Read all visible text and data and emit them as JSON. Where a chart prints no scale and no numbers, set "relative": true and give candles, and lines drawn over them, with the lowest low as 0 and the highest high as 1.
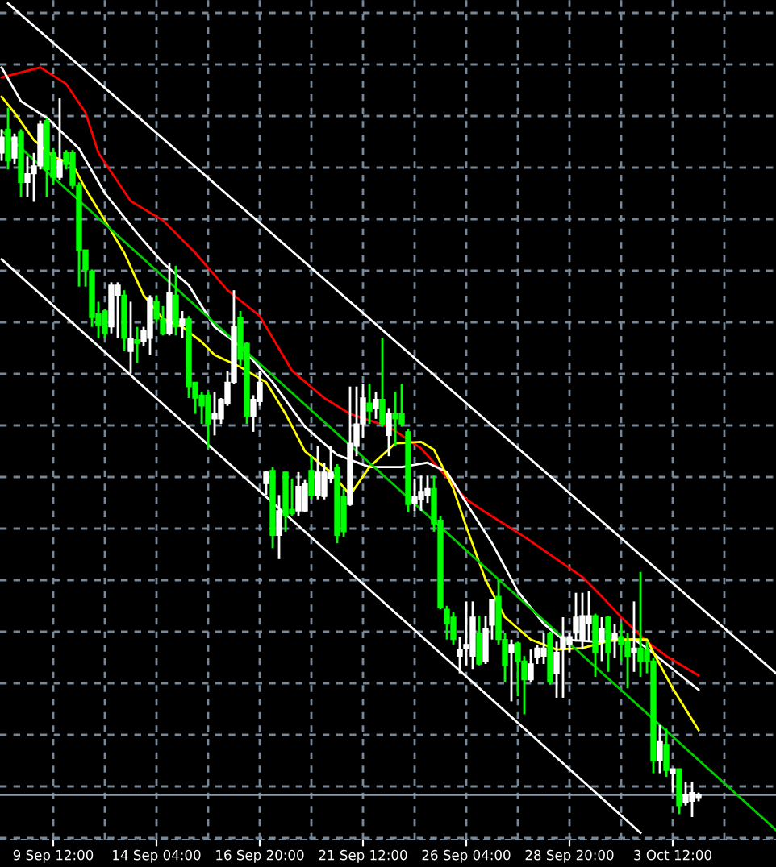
{
  "chart_data": {
    "type": "candlestick",
    "relative": true,
    "grid": true,
    "legend": false,
    "tick_labels": "x",
    "categories": [
      null,
      null,
      null,
      null,
      null,
      null,
      null,
      null,
      "9 Sep 12:00",
      null,
      null,
      null,
      null,
      null,
      null,
      null,
      null,
      null,
      null,
      null,
      null,
      null,
      null,
      null,
      "14 Sep 04:00",
      null,
      null,
      null,
      null,
      null,
      null,
      null,
      null,
      null,
      null,
      null,
      null,
      null,
      null,
      null,
      "16 Sep 20:00",
      null,
      null,
      null,
      null,
      null,
      null,
      null,
      null,
      null,
      null,
      null,
      null,
      null,
      null,
      null,
      "21 Sep 12:00",
      null,
      null,
      null,
      null,
      null,
      null,
      null,
      null,
      null,
      null,
      null,
      null,
      null,
      null,
      null,
      "26 Sep 04:00",
      null,
      null,
      null,
      null,
      null,
      null,
      null,
      null,
      null,
      null,
      null,
      null,
      null,
      null,
      null,
      "28 Sep 20:00",
      null,
      null,
      null,
      null,
      null,
      null,
      null,
      null,
      null,
      null,
      null,
      null,
      null,
      null,
      null,
      "3 Oct 12:00",
      null,
      null,
      null,
      null,
      null,
      null,
      null,
      null,
      null,
      null,
      null,
      null,
      null,
      null,
      null,
      null
    ],
    "ohlc": [
      [
        0.924,
        0.957,
        0.913,
        0.946
      ],
      [
        0.957,
        0.987,
        0.901,
        0.913
      ],
      [
        0.917,
        0.951,
        0.908,
        0.946
      ],
      [
        0.953,
        0.957,
        0.863,
        0.883
      ],
      [
        0.883,
        0.919,
        0.863,
        0.895
      ],
      [
        0.895,
        0.924,
        0.856,
        0.906
      ],
      [
        0.906,
        0.969,
        0.901,
        0.964
      ],
      [
        0.969,
        0.973,
        0.863,
        0.901
      ],
      [
        0.924,
        0.93,
        0.879,
        0.89
      ],
      [
        0.89,
        1.0,
        0.886,
        0.913
      ],
      [
        0.924,
        0.928,
        0.901,
        0.908
      ],
      [
        0.924,
        0.928,
        0.874,
        0.879
      ],
      [
        0.879,
        0.883,
        0.738,
        0.789
      ],
      [
        0.789,
        0.789,
        0.738,
        0.762
      ],
      [
        0.76,
        0.762,
        0.682,
        0.695
      ],
      [
        0.7,
        0.717,
        0.666,
        0.684
      ],
      [
        0.704,
        0.706,
        0.666,
        0.673
      ],
      [
        0.682,
        0.744,
        0.673,
        0.74
      ],
      [
        0.726,
        0.744,
        0.666,
        0.74
      ],
      [
        0.726,
        0.733,
        0.648,
        0.666
      ],
      [
        0.648,
        0.717,
        0.617,
        0.666
      ],
      [
        0.664,
        0.682,
        0.632,
        0.659
      ],
      [
        0.661,
        0.682,
        0.655,
        0.677
      ],
      [
        0.666,
        0.726,
        0.643,
        0.722
      ],
      [
        0.717,
        0.726,
        0.688,
        0.693
      ],
      [
        0.693,
        0.711,
        0.67,
        0.673
      ],
      [
        0.673,
        0.771,
        0.67,
        0.729
      ],
      [
        0.726,
        0.767,
        0.67,
        0.682
      ],
      [
        0.684,
        0.704,
        0.666,
        0.693
      ],
      [
        0.693,
        0.697,
        0.583,
        0.599
      ],
      [
        0.605,
        0.605,
        0.561,
        0.583
      ],
      [
        0.587,
        0.592,
        0.547,
        0.572
      ],
      [
        0.587,
        0.592,
        0.513,
        0.547
      ],
      [
        0.554,
        0.592,
        0.531,
        0.561
      ],
      [
        0.554,
        0.583,
        0.547,
        0.581
      ],
      [
        0.576,
        0.621,
        0.572,
        0.605
      ],
      [
        0.605,
        0.733,
        0.603,
        0.682
      ],
      [
        0.695,
        0.704,
        0.628,
        0.637
      ],
      [
        0.659,
        0.661,
        0.547,
        0.558
      ],
      [
        0.558,
        0.587,
        0.536,
        0.581
      ],
      [
        0.578,
        0.621,
        0.572,
        0.605
      ],
      [
        0.464,
        0.482,
        0.448,
        0.48
      ],
      [
        0.482,
        0.487,
        0.374,
        0.392
      ],
      [
        0.392,
        0.448,
        0.359,
        0.426
      ],
      [
        0.48,
        0.48,
        0.397,
        0.419
      ],
      [
        0.428,
        0.471,
        0.419,
        0.422
      ],
      [
        0.426,
        0.48,
        0.419,
        0.46
      ],
      [
        0.426,
        0.469,
        0.424,
        0.464
      ],
      [
        0.482,
        0.502,
        0.442,
        0.448
      ],
      [
        0.448,
        0.516,
        0.442,
        0.48
      ],
      [
        0.446,
        0.493,
        0.442,
        0.48
      ],
      [
        0.471,
        0.516,
        0.464,
        0.48
      ],
      [
        0.487,
        0.491,
        0.381,
        0.392
      ],
      [
        0.446,
        0.457,
        0.39,
        0.397
      ],
      [
        0.435,
        0.599,
        0.433,
        0.52
      ],
      [
        0.516,
        0.599,
        0.502,
        0.547
      ],
      [
        0.547,
        0.603,
        0.527,
        0.583
      ],
      [
        0.576,
        0.603,
        0.547,
        0.565
      ],
      [
        0.569,
        0.592,
        0.554,
        0.581
      ],
      [
        0.581,
        0.666,
        0.543,
        0.547
      ],
      [
        0.531,
        0.569,
        0.502,
        0.561
      ],
      [
        0.561,
        0.592,
        0.516,
        0.554
      ],
      [
        0.561,
        0.603,
        0.543,
        0.547
      ],
      [
        0.536,
        0.54,
        0.424,
        0.435
      ],
      [
        0.437,
        0.471,
        0.426,
        0.446
      ],
      [
        0.442,
        0.475,
        0.426,
        0.453
      ],
      [
        0.448,
        0.475,
        0.437,
        0.457
      ],
      [
        0.457,
        0.475,
        0.397,
        0.408
      ],
      [
        0.413,
        0.419,
        0.289,
        0.291
      ],
      [
        0.289,
        0.294,
        0.247,
        0.269
      ],
      [
        0.278,
        0.285,
        0.24,
        0.247
      ],
      [
        0.224,
        0.251,
        0.2,
        0.233
      ],
      [
        0.235,
        0.3,
        0.211,
        0.24
      ],
      [
        0.224,
        0.3,
        0.206,
        0.278
      ],
      [
        0.256,
        0.28,
        0.211,
        0.213
      ],
      [
        0.217,
        0.28,
        0.213,
        0.262
      ],
      [
        0.267,
        0.303,
        0.247,
        0.303
      ],
      [
        0.307,
        0.33,
        0.24,
        0.247
      ],
      [
        0.247,
        0.256,
        0.188,
        0.211
      ],
      [
        0.229,
        0.247,
        0.161,
        0.24
      ],
      [
        0.242,
        0.244,
        0.168,
        0.217
      ],
      [
        0.217,
        0.224,
        0.143,
        0.191
      ],
      [
        0.191,
        0.233,
        0.188,
        0.213
      ],
      [
        0.222,
        0.24,
        0.213,
        0.235
      ],
      [
        0.224,
        0.256,
        0.213,
        0.235
      ],
      [
        0.256,
        0.258,
        0.184,
        0.188
      ],
      [
        0.2,
        0.244,
        0.166,
        0.229
      ],
      [
        0.235,
        0.278,
        0.166,
        0.251
      ],
      [
        0.24,
        0.256,
        0.229,
        0.251
      ],
      [
        0.256,
        0.312,
        0.244,
        0.278
      ],
      [
        0.247,
        0.312,
        0.233,
        0.28
      ],
      [
        0.269,
        0.314,
        0.244,
        0.28
      ],
      [
        0.28,
        0.283,
        0.195,
        0.229
      ],
      [
        0.244,
        0.278,
        0.217,
        0.262
      ],
      [
        0.278,
        0.28,
        0.202,
        0.229
      ],
      [
        0.247,
        0.269,
        0.222,
        0.256
      ],
      [
        0.251,
        0.269,
        0.217,
        0.24
      ],
      [
        0.244,
        0.256,
        0.179,
        0.224
      ],
      [
        0.229,
        0.3,
        0.202,
        0.235
      ],
      [
        0.235,
        0.341,
        0.195,
        0.217
      ],
      [
        0.233,
        0.244,
        0.2,
        0.217
      ],
      [
        0.217,
        0.222,
        0.061,
        0.078
      ],
      [
        0.078,
        0.128,
        0.061,
        0.105
      ],
      [
        0.101,
        0.123,
        0.056,
        0.065
      ],
      [
        0.061,
        0.067,
        0.034,
        0.067
      ],
      [
        0.067,
        0.067,
        0.004,
        0.016
      ],
      [
        0.02,
        0.049,
        0.016,
        0.031
      ],
      [
        0.022,
        0.049,
        0.0,
        0.034
      ],
      [
        0.027,
        0.034,
        0.022,
        0.031
      ],
      null,
      null,
      null,
      null,
      null,
      null,
      null,
      null,
      null,
      null,
      null,
      null
    ],
    "colors": [
      "#ffffff",
      "#00ff00",
      "#ffffff",
      "#00ff00",
      "#ffffff",
      "#ffffff",
      "#ffffff",
      "#00ff00",
      "#00ff00",
      "#ffffff",
      "#00ff00",
      "#00ff00",
      "#00ff00",
      "#00ff00",
      "#00ff00",
      "#00ff00",
      "#00ff00",
      "#ffffff",
      "#ffffff",
      "#00ff00",
      "#ffffff",
      "#00ff00",
      "#ffffff",
      "#ffffff",
      "#00ff00",
      "#00ff00",
      "#ffffff",
      "#00ff00",
      "#ffffff",
      "#00ff00",
      "#00ff00",
      "#00ff00",
      "#00ff00",
      "#ffffff",
      "#ffffff",
      "#ffffff",
      "#ffffff",
      "#00ff00",
      "#00ff00",
      "#ffffff",
      "#ffffff",
      "#ffffff",
      "#00ff00",
      "#ffffff",
      "#00ff00",
      "#00ff00",
      "#ffffff",
      "#ffffff",
      "#00ff00",
      "#ffffff",
      "#ffffff",
      "#ffffff",
      "#00ff00",
      "#00ff00",
      "#ffffff",
      "#ffffff",
      "#ffffff",
      "#00ff00",
      "#ffffff",
      "#00ff00",
      "#ffffff",
      "#00ff00",
      "#00ff00",
      "#00ff00",
      "#ffffff",
      "#ffffff",
      "#ffffff",
      "#00ff00",
      "#00ff00",
      "#00ff00",
      "#00ff00",
      "#ffffff",
      "#ffffff",
      "#ffffff",
      "#00ff00",
      "#ffffff",
      "#ffffff",
      "#00ff00",
      "#00ff00",
      "#ffffff",
      "#00ff00",
      "#00ff00",
      "#ffffff",
      "#ffffff",
      "#ffffff",
      "#00ff00",
      "#ffffff",
      "#ffffff",
      "#ffffff",
      "#ffffff",
      "#ffffff",
      "#ffffff",
      "#00ff00",
      "#ffffff",
      "#00ff00",
      "#ffffff",
      "#00ff00",
      "#00ff00",
      "#ffffff",
      "#00ff00",
      "#00ff00",
      "#00ff00",
      "#ffffff",
      "#00ff00",
      "#ffffff",
      "#00ff00",
      "#ffffff",
      "#ffffff",
      "#ffffff",
      null,
      null,
      null,
      null,
      null,
      null,
      null,
      null,
      null,
      null,
      null,
      null
    ],
    "series": [
      {
        "type": "line",
        "color": "#ff0000",
        "values": [
          1.029,
          null,
          null,
          null,
          null,
          null,
          1.043,
          null,
          null,
          null,
          1.02,
          null,
          null,
          0.98,
          null,
          0.924,
          null,
          null,
          null,
          null,
          0.857,
          null,
          null,
          null,
          null,
          0.83,
          null,
          null,
          null,
          null,
          0.785,
          null,
          null,
          null,
          null,
          0.733,
          null,
          null,
          null,
          null,
          0.697,
          null,
          null,
          null,
          null,
          0.621,
          null,
          null,
          null,
          null,
          0.583,
          null,
          null,
          null,
          0.561,
          null,
          null,
          null,
          null,
          null,
          0.543,
          null,
          null,
          null,
          null,
          0.513,
          null,
          0.493,
          null,
          null,
          null,
          null,
          0.442,
          null,
          null,
          0.424,
          null,
          null,
          null,
          null,
          null,
          0.39,
          null,
          null,
          null,
          null,
          0.359,
          null,
          null,
          null,
          0.334,
          null,
          null,
          0.307,
          null,
          null,
          0.278,
          null,
          null,
          null,
          0.244,
          null,
          null,
          0.224,
          null,
          null,
          null,
          null,
          0.197,
          null,
          null,
          null,
          null,
          null,
          null,
          null,
          null,
          null,
          null,
          null,
          null
        ]
      },
      {
        "type": "line",
        "color": "#ffffff",
        "values": [
          1.043,
          null,
          null,
          0.996,
          null,
          null,
          null,
          0.973,
          null,
          null,
          null,
          null,
          0.93,
          null,
          null,
          null,
          0.868,
          null,
          null,
          null,
          null,
          0.812,
          null,
          null,
          null,
          0.771,
          null,
          null,
          null,
          0.74,
          null,
          null,
          null,
          0.682,
          null,
          null,
          null,
          0.655,
          null,
          null,
          null,
          null,
          0.605,
          null,
          null,
          null,
          null,
          0.543,
          null,
          null,
          null,
          null,
          0.504,
          null,
          null,
          null,
          null,
          0.487,
          null,
          null,
          null,
          null,
          0.487,
          null,
          null,
          null,
          0.493,
          null,
          null,
          0.48,
          null,
          null,
          0.437,
          null,
          null,
          null,
          0.381,
          null,
          null,
          null,
          0.314,
          null,
          null,
          null,
          0.269,
          null,
          null,
          0.247,
          null,
          null,
          null,
          null,
          0.244,
          null,
          null,
          null,
          null,
          null,
          0.247,
          null,
          0.235,
          null,
          null,
          null,
          0.206,
          null,
          null,
          null,
          0.177,
          null,
          null,
          null,
          null,
          null,
          null,
          null,
          null,
          null,
          null,
          null,
          null
        ]
      },
      {
        "type": "line",
        "color": "#ffff00",
        "values": [
          1.002,
          null,
          0.98,
          null,
          null,
          0.942,
          null,
          null,
          0.919,
          null,
          null,
          0.908,
          null,
          0.874,
          null,
          null,
          0.83,
          null,
          null,
          0.785,
          null,
          null,
          0.726,
          null,
          null,
          0.693,
          null,
          null,
          0.682,
          null,
          null,
          0.661,
          null,
          0.643,
          null,
          null,
          null,
          0.626,
          null,
          null,
          null,
          0.605,
          null,
          null,
          0.561,
          null,
          null,
          0.509,
          null,
          null,
          null,
          0.48,
          null,
          null,
          0.448,
          null,
          null,
          0.487,
          null,
          null,
          null,
          0.52,
          null,
          null,
          null,
          0.522,
          null,
          0.511,
          null,
          null,
          0.457,
          null,
          0.404,
          null,
          null,
          0.33,
          null,
          null,
          0.278,
          null,
          null,
          null,
          0.247,
          null,
          null,
          null,
          0.233,
          null,
          null,
          null,
          0.235,
          null,
          null,
          null,
          null,
          0.247,
          null,
          null,
          null,
          null,
          0.247,
          0.229,
          null,
          null,
          0.179,
          null,
          null,
          null,
          0.121,
          null,
          null,
          null,
          null,
          null,
          null,
          null,
          null,
          null,
          null,
          null,
          null
        ]
      },
      {
        "type": "line",
        "color": "#00cc00",
        "values": [
          0.955,
          null,
          null,
          null,
          null,
          null,
          null,
          null,
          null,
          null,
          null,
          null,
          null,
          null,
          null,
          null,
          null,
          null,
          null,
          null,
          null,
          null,
          null,
          null,
          null,
          null,
          null,
          null,
          null,
          null,
          null,
          null,
          null,
          null,
          null,
          null,
          null,
          null,
          null,
          null,
          null,
          null,
          null,
          null,
          null,
          null,
          null,
          null,
          null,
          null,
          null,
          null,
          null,
          null,
          null,
          null,
          null,
          null,
          null,
          null,
          null,
          null,
          null,
          null,
          null,
          null,
          null,
          null,
          null,
          null,
          null,
          null,
          null,
          null,
          null,
          null,
          null,
          null,
          null,
          null,
          null,
          null,
          null,
          null,
          null,
          null,
          null,
          null,
          null,
          null,
          null,
          null,
          null,
          null,
          null,
          null,
          null,
          null,
          null,
          null,
          null,
          null,
          null,
          null,
          null,
          null,
          null,
          null,
          null,
          null,
          null,
          null,
          null,
          null,
          null,
          null,
          null,
          null,
          null,
          null,
          -0.018
        ]
      },
      {
        "type": "line",
        "color": "#ffffff",
        "values": [
          null,
          1.132,
          null,
          null,
          null,
          null,
          null,
          null,
          null,
          null,
          null,
          null,
          null,
          null,
          null,
          null,
          null,
          null,
          null,
          null,
          null,
          null,
          null,
          null,
          null,
          null,
          null,
          null,
          null,
          null,
          null,
          null,
          null,
          null,
          null,
          null,
          null,
          null,
          null,
          null,
          null,
          null,
          null,
          null,
          null,
          null,
          null,
          null,
          null,
          null,
          null,
          null,
          null,
          null,
          null,
          null,
          null,
          null,
          null,
          null,
          null,
          null,
          null,
          null,
          null,
          null,
          null,
          null,
          null,
          null,
          null,
          null,
          null,
          null,
          null,
          null,
          null,
          null,
          null,
          null,
          null,
          null,
          null,
          null,
          null,
          null,
          null,
          null,
          null,
          null,
          null,
          null,
          null,
          null,
          null,
          null,
          null,
          null,
          null,
          null,
          null,
          null,
          null,
          null,
          null,
          null,
          null,
          null,
          null,
          null,
          null,
          null,
          null,
          null,
          null,
          null,
          null,
          null,
          null,
          null,
          0.2
        ]
      },
      {
        "type": "line",
        "color": "#ffffff",
        "values": [
          0.776,
          null,
          null,
          null,
          null,
          null,
          null,
          null,
          null,
          null,
          null,
          null,
          null,
          null,
          null,
          null,
          null,
          null,
          null,
          null,
          null,
          null,
          null,
          null,
          null,
          null,
          null,
          null,
          null,
          null,
          null,
          null,
          null,
          null,
          null,
          null,
          null,
          null,
          null,
          null,
          null,
          null,
          null,
          null,
          null,
          null,
          null,
          null,
          null,
          null,
          null,
          null,
          null,
          null,
          null,
          null,
          null,
          null,
          null,
          null,
          null,
          null,
          null,
          null,
          null,
          null,
          null,
          null,
          null,
          null,
          null,
          null,
          null,
          null,
          null,
          null,
          null,
          null,
          null,
          null,
          null,
          null,
          null,
          null,
          null,
          null,
          null,
          null,
          null,
          null,
          null,
          null,
          null,
          null,
          null,
          null,
          null,
          null,
          null,
          -0.022,
          null,
          null,
          null,
          null,
          null,
          null,
          null,
          null,
          null,
          null,
          null,
          null,
          null,
          null,
          null,
          null,
          null,
          null,
          null,
          null,
          null
        ]
      }
    ],
    "ref_lines": [
      {
        "axis": "y",
        "value": 0.031,
        "color": "#8f9aa6"
      }
    ]
  }
}
